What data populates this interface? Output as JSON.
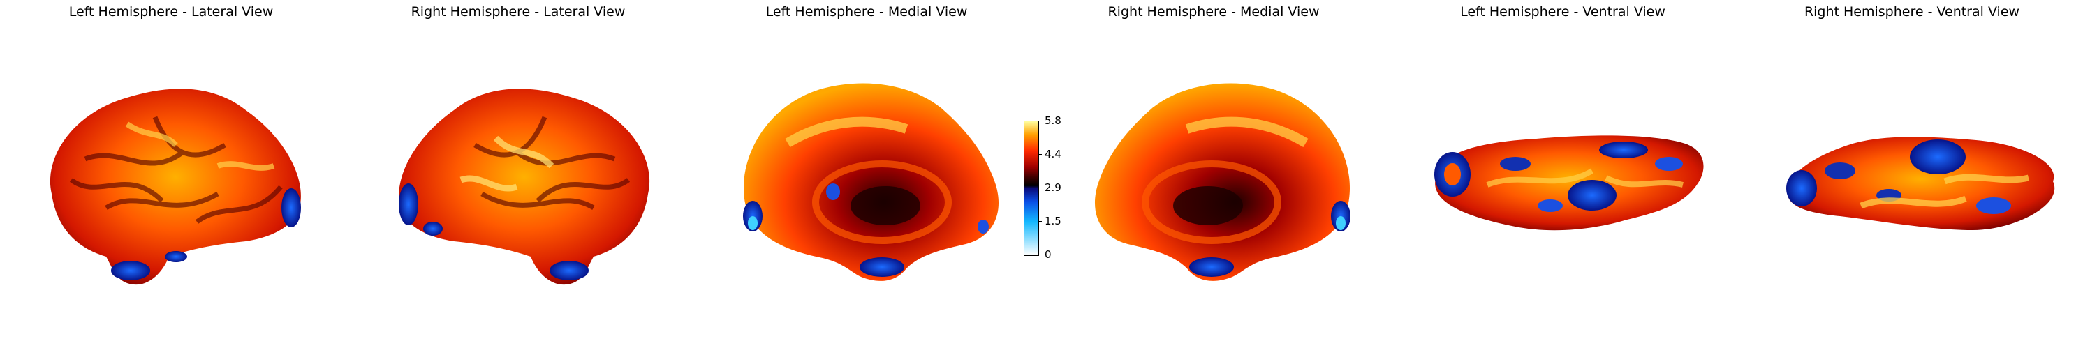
{
  "titles": [
    "Left Hemisphere - Lateral View",
    "Right Hemisphere - Lateral View",
    "Left Hemisphere - Medial View",
    "Right Hemisphere - Medial View",
    "Left Hemisphere - Ventral View",
    "Right Hemisphere - Ventral View"
  ],
  "colorbar": {
    "ticks": [
      "5.8",
      "4.4",
      "2.9",
      "1.5",
      "0"
    ],
    "colormap": [
      "#ffffff",
      "#13b8ff",
      "#0a0a78",
      "#000000",
      "#a00000",
      "#ff2a00",
      "#ffa000",
      "#ffffa0"
    ]
  }
}
